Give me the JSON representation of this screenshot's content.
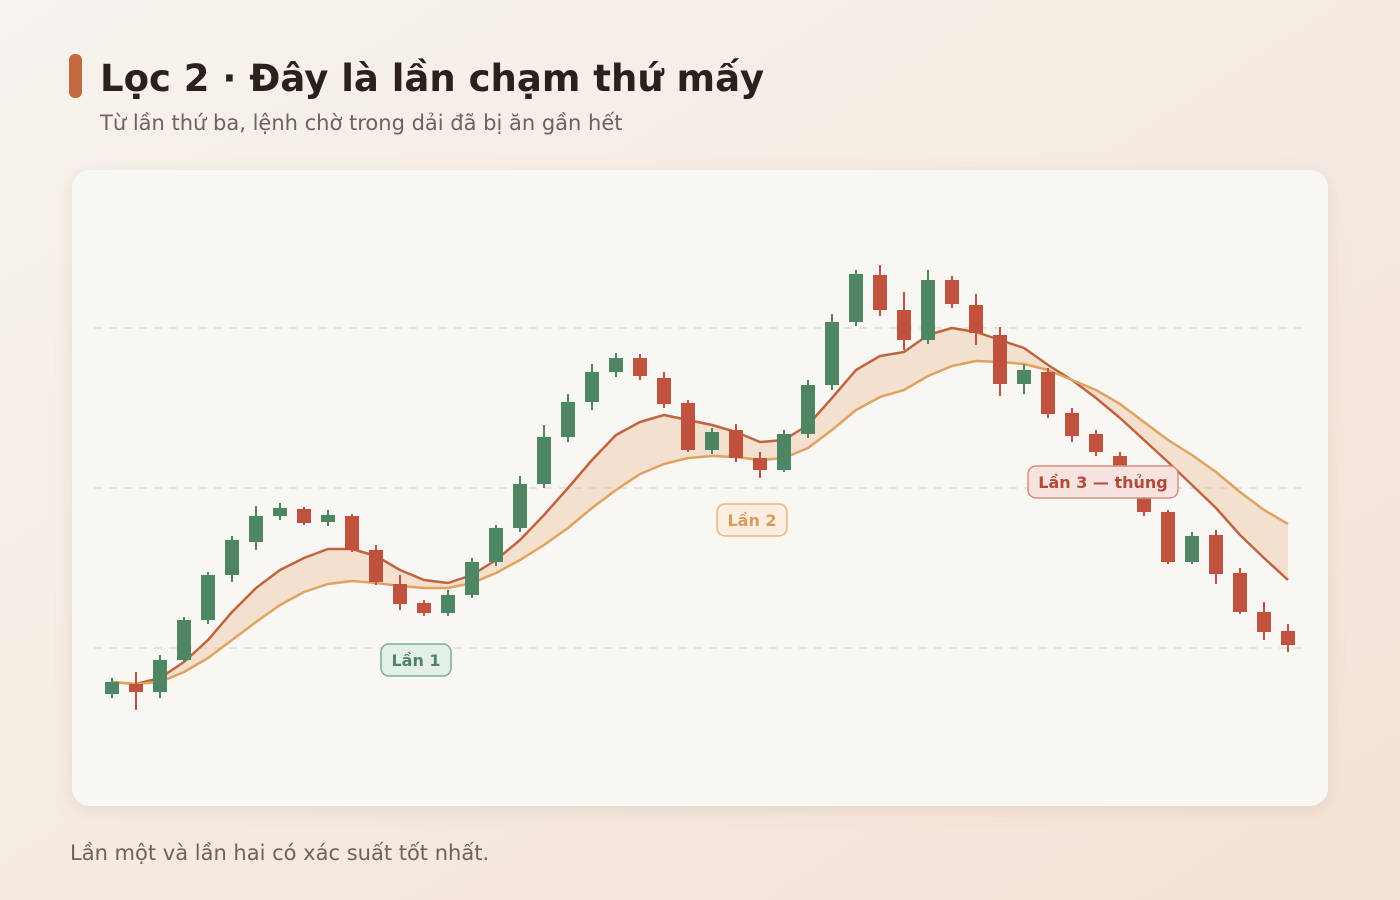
{
  "chart_data": {
    "type": "candlestick",
    "title": "Lọc 2 · Đây là lần chạm thứ mấy",
    "subtitle": "Từ lần thứ ba, lệnh chờ trong dải đã bị ăn gần hết",
    "footnote": "Lần một và lần hai có xác suất tốt nhất.",
    "annotations": [
      "Lần 1",
      "Lần 2",
      "Lần 3 — thủng"
    ],
    "up_color": "#4e8563",
    "down_color": "#c0513f",
    "band_color": "#eab48a",
    "ylim": [
      10,
      150
    ],
    "yticks": [
      40,
      80,
      120
    ],
    "grid": true,
    "open": [
      28.5,
      31,
      29,
      37,
      47,
      58.25,
      66.5,
      73,
      74.75,
      71.5,
      73,
      64.5,
      56,
      51.25,
      48.75,
      53.25,
      61.5,
      70,
      81,
      92.75,
      101.5,
      109,
      112.5,
      107.5,
      101.25,
      89.5,
      94.5,
      87.5,
      84.5,
      93.5,
      105.75,
      121.5,
      133.25,
      124.5,
      117,
      132,
      125.75,
      118.25,
      106,
      109,
      98.75,
      93.5,
      88,
      82,
      74,
      61.5,
      68.25,
      58.75,
      49,
      44.25
    ],
    "high": [
      32.5,
      34,
      38.25,
      47.75,
      59,
      68,
      75.5,
      76.25,
      75.25,
      74.5,
      73.5,
      65.75,
      58.25,
      52,
      54.5,
      62.5,
      70.75,
      83,
      95.75,
      103.5,
      111,
      113.75,
      113.5,
      109,
      102,
      95,
      96,
      89,
      94.5,
      107,
      123.5,
      134.5,
      135.75,
      129,
      134.5,
      133,
      128.5,
      120.25,
      111,
      110,
      100,
      94.5,
      89,
      83,
      74.5,
      69,
      69.5,
      60,
      51.5,
      46
    ],
    "low": [
      27.5,
      24.5,
      27.5,
      36.5,
      46,
      56.5,
      64.5,
      72,
      70.75,
      70.5,
      64,
      55.75,
      49.5,
      48,
      48,
      52.5,
      60.5,
      69,
      80,
      91.5,
      99.5,
      107.75,
      107,
      100,
      89,
      88.5,
      86.5,
      82.5,
      84,
      92.5,
      104.5,
      120.5,
      123,
      114.5,
      116,
      125,
      115.75,
      103,
      103.5,
      97.5,
      91.5,
      88,
      81.5,
      73,
      61,
      61,
      56,
      48.5,
      42,
      39
    ],
    "close": [
      31.5,
      29,
      37,
      47,
      58.25,
      67,
      73,
      75,
      71.25,
      73.25,
      64.5,
      56.5,
      51,
      48.75,
      53.25,
      61.5,
      70,
      81,
      92.75,
      101.5,
      109,
      112.5,
      108,
      101,
      89.5,
      94,
      87.5,
      84.5,
      93.5,
      105.75,
      121.5,
      133.5,
      124.5,
      117,
      132,
      126,
      118.75,
      106,
      109.5,
      98.5,
      93,
      89,
      83,
      74,
      61.5,
      68,
      58.5,
      49,
      44,
      40.75
    ],
    "lines": [
      {
        "color": "#c0643f",
        "values": [
          31.5,
          31,
          32.5,
          36.5,
          42,
          49,
          55,
          59.5,
          62.5,
          64.75,
          64.75,
          63,
          59.5,
          57,
          56.25,
          58.25,
          62,
          67,
          73.25,
          80,
          87,
          93.25,
          96.5,
          98.25,
          97,
          95.75,
          94,
          91.5,
          92,
          95.75,
          102.5,
          109.5,
          113,
          114,
          118.25,
          120,
          119,
          117,
          115,
          110.75,
          107,
          102.5,
          97.5,
          92,
          86.5,
          80.75,
          75,
          68.25,
          62.5,
          57
        ]
      },
      {
        "color": "#e0a35f",
        "values": [
          31.5,
          31,
          31.5,
          34,
          37.5,
          42,
          46.5,
          50.75,
          54,
          56,
          56.75,
          56.25,
          55.5,
          55,
          55,
          56.25,
          58.75,
          62,
          65.75,
          70,
          75,
          79.5,
          83.5,
          86,
          87.5,
          88,
          87.75,
          87,
          87.5,
          90,
          94.5,
          99.5,
          102.75,
          104.5,
          108,
          110.5,
          111.75,
          111.5,
          111,
          109.5,
          107,
          104.5,
          101,
          96.5,
          92,
          88.25,
          84,
          79,
          74.5,
          71
        ]
      }
    ]
  }
}
